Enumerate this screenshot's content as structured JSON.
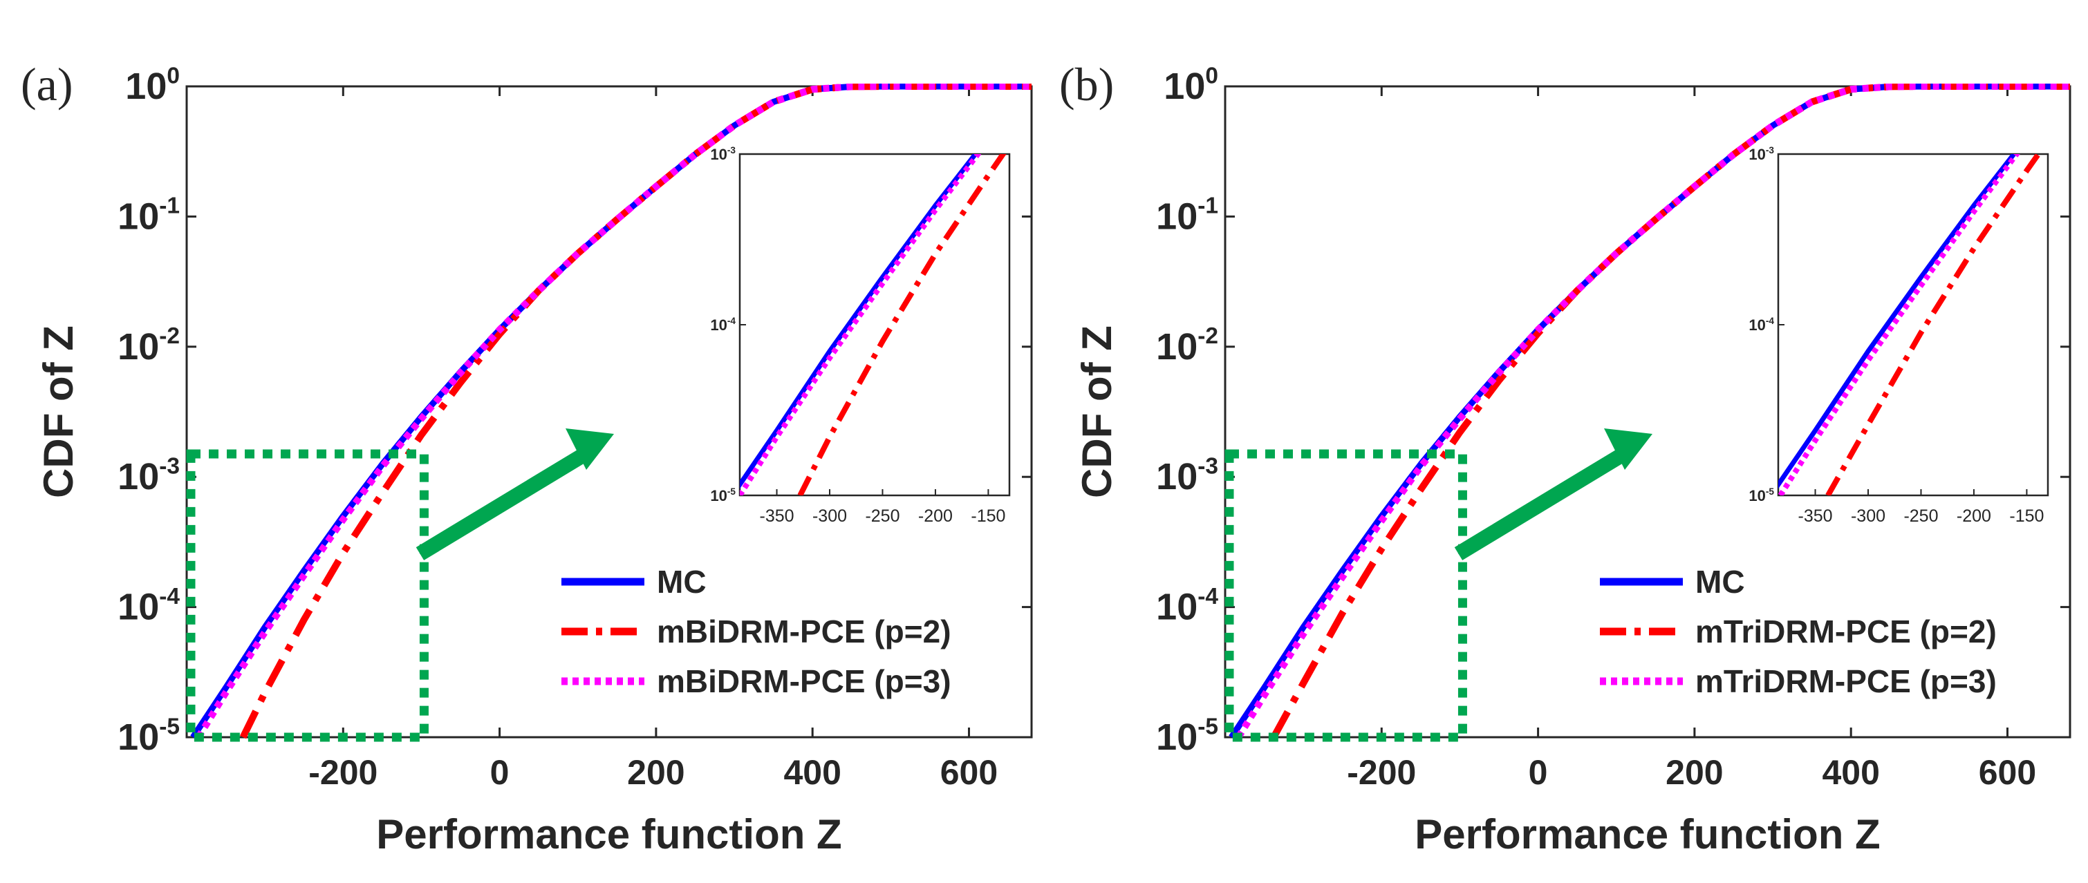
{
  "figure": {
    "panels": [
      "(a)",
      "(b)"
    ]
  },
  "chart_data": [
    {
      "type": "line",
      "panel_label": "(a)",
      "xlabel": "Performance function Z",
      "ylabel": "CDF of Z",
      "xlim": [
        -400,
        680
      ],
      "ylim": [
        1e-05,
        1
      ],
      "yscale": "log",
      "xticks": [
        -200,
        0,
        200,
        400,
        600
      ],
      "xtick_labels": [
        "-200",
        "0",
        "200",
        "400",
        "600"
      ],
      "yticks": [
        1e-05,
        0.0001,
        0.001,
        0.01,
        0.1,
        1
      ],
      "ytick_bases": [
        "10",
        "10",
        "10",
        "10",
        "10",
        "10"
      ],
      "ytick_exps": [
        "-5",
        "-4",
        "-3",
        "-2",
        "-1",
        "0"
      ],
      "series": [
        {
          "name": "MC",
          "color": "#0000ff",
          "style": "solid",
          "x": [
            -392,
            -350,
            -300,
            -250,
            -200,
            -150,
            -100,
            -50,
            0,
            50,
            100,
            150,
            200,
            250,
            300,
            350,
            400,
            450,
            500,
            550,
            600,
            650,
            680
          ],
          "y": [
            1e-05,
            2.4e-05,
            7e-05,
            0.00019,
            0.0005,
            0.00125,
            0.0029,
            0.0064,
            0.0135,
            0.027,
            0.052,
            0.095,
            0.17,
            0.3,
            0.5,
            0.76,
            0.95,
            0.995,
            1,
            1,
            1,
            1,
            1
          ]
        },
        {
          "name": "mBiDRM-PCE (p=2)",
          "color": "#ff0000",
          "style": "dashdot",
          "x": [
            -328,
            -300,
            -250,
            -200,
            -150,
            -100,
            -50,
            0,
            50,
            100,
            150,
            200,
            250,
            300,
            350,
            400,
            450,
            500,
            550,
            600,
            650,
            680
          ],
          "y": [
            1e-05,
            2.2e-05,
            8e-05,
            0.00026,
            0.00075,
            0.0021,
            0.0053,
            0.0125,
            0.027,
            0.052,
            0.095,
            0.17,
            0.3,
            0.5,
            0.76,
            0.95,
            0.995,
            1,
            1,
            1,
            1,
            1
          ]
        },
        {
          "name": "mBiDRM-PCE (p=3)",
          "color": "#ff00ff",
          "style": "dotted",
          "x": [
            -385,
            -350,
            -300,
            -250,
            -200,
            -150,
            -100,
            -50,
            0,
            50,
            100,
            150,
            200,
            250,
            300,
            350,
            400,
            450,
            500,
            550,
            600,
            650,
            680
          ],
          "y": [
            1e-05,
            2.2e-05,
            6.4e-05,
            0.000175,
            0.00047,
            0.0012,
            0.0028,
            0.0063,
            0.0135,
            0.027,
            0.052,
            0.095,
            0.17,
            0.3,
            0.5,
            0.76,
            0.95,
            0.995,
            1,
            1,
            1,
            1,
            1
          ]
        }
      ],
      "inset": {
        "xlim": [
          -385,
          -130
        ],
        "ylim": [
          1e-05,
          0.001
        ],
        "xticks": [
          -350,
          -300,
          -250,
          -200,
          -150
        ],
        "xtick_labels": [
          "-350",
          "-300",
          "-250",
          "-200",
          "-150"
        ],
        "yticks": [
          1e-05,
          0.0001,
          0.001
        ],
        "ytick_bases": [
          "10",
          "10",
          "10"
        ],
        "ytick_exps": [
          "-5",
          "-4",
          "-3"
        ]
      }
    },
    {
      "type": "line",
      "panel_label": "(b)",
      "xlabel": "Performance function Z",
      "ylabel": "CDF of Z",
      "xlim": [
        -400,
        680
      ],
      "ylim": [
        1e-05,
        1
      ],
      "yscale": "log",
      "xticks": [
        -200,
        0,
        200,
        400,
        600
      ],
      "xtick_labels": [
        "-200",
        "0",
        "200",
        "400",
        "600"
      ],
      "yticks": [
        1e-05,
        0.0001,
        0.001,
        0.01,
        0.1,
        1
      ],
      "ytick_bases": [
        "10",
        "10",
        "10",
        "10",
        "10",
        "10"
      ],
      "ytick_exps": [
        "-5",
        "-4",
        "-3",
        "-2",
        "-1",
        "0"
      ],
      "series": [
        {
          "name": "MC",
          "color": "#0000ff",
          "style": "solid",
          "x": [
            -392,
            -350,
            -300,
            -250,
            -200,
            -150,
            -100,
            -50,
            0,
            50,
            100,
            150,
            200,
            250,
            300,
            350,
            400,
            450,
            500,
            550,
            600,
            650,
            680
          ],
          "y": [
            1e-05,
            2.4e-05,
            7e-05,
            0.00019,
            0.0005,
            0.00125,
            0.0029,
            0.0064,
            0.0135,
            0.027,
            0.052,
            0.095,
            0.17,
            0.3,
            0.5,
            0.76,
            0.95,
            0.995,
            1,
            1,
            1,
            1,
            1
          ]
        },
        {
          "name": "mTriDRM-PCE (p=2)",
          "color": "#ff0000",
          "style": "dashdot",
          "x": [
            -338,
            -300,
            -250,
            -200,
            -150,
            -100,
            -50,
            0,
            50,
            100,
            150,
            200,
            250,
            300,
            350,
            400,
            450,
            500,
            550,
            600,
            650,
            680
          ],
          "y": [
            1e-05,
            2.6e-05,
            9e-05,
            0.00028,
            0.0008,
            0.0022,
            0.0055,
            0.0127,
            0.027,
            0.052,
            0.095,
            0.17,
            0.3,
            0.5,
            0.76,
            0.95,
            0.995,
            1,
            1,
            1,
            1,
            1
          ]
        },
        {
          "name": "mTriDRM-PCE (p=3)",
          "color": "#ff00ff",
          "style": "dotted",
          "x": [
            -383,
            -350,
            -300,
            -250,
            -200,
            -150,
            -100,
            -50,
            0,
            50,
            100,
            150,
            200,
            250,
            300,
            350,
            400,
            450,
            500,
            550,
            600,
            650,
            680
          ],
          "y": [
            1e-05,
            2.1e-05,
            6.2e-05,
            0.00017,
            0.00046,
            0.0012,
            0.0028,
            0.0063,
            0.0135,
            0.027,
            0.052,
            0.095,
            0.17,
            0.3,
            0.5,
            0.76,
            0.95,
            0.995,
            1,
            1,
            1,
            1,
            1
          ]
        }
      ],
      "inset": {
        "xlim": [
          -385,
          -130
        ],
        "ylim": [
          1e-05,
          0.001
        ],
        "xticks": [
          -350,
          -300,
          -250,
          -200,
          -150
        ],
        "xtick_labels": [
          "-350",
          "-300",
          "-250",
          "-200",
          "-150"
        ],
        "yticks": [
          1e-05,
          0.0001,
          0.001
        ],
        "ytick_bases": [
          "10",
          "10",
          "10"
        ],
        "ytick_exps": [
          "-5",
          "-4",
          "-3"
        ]
      }
    }
  ]
}
